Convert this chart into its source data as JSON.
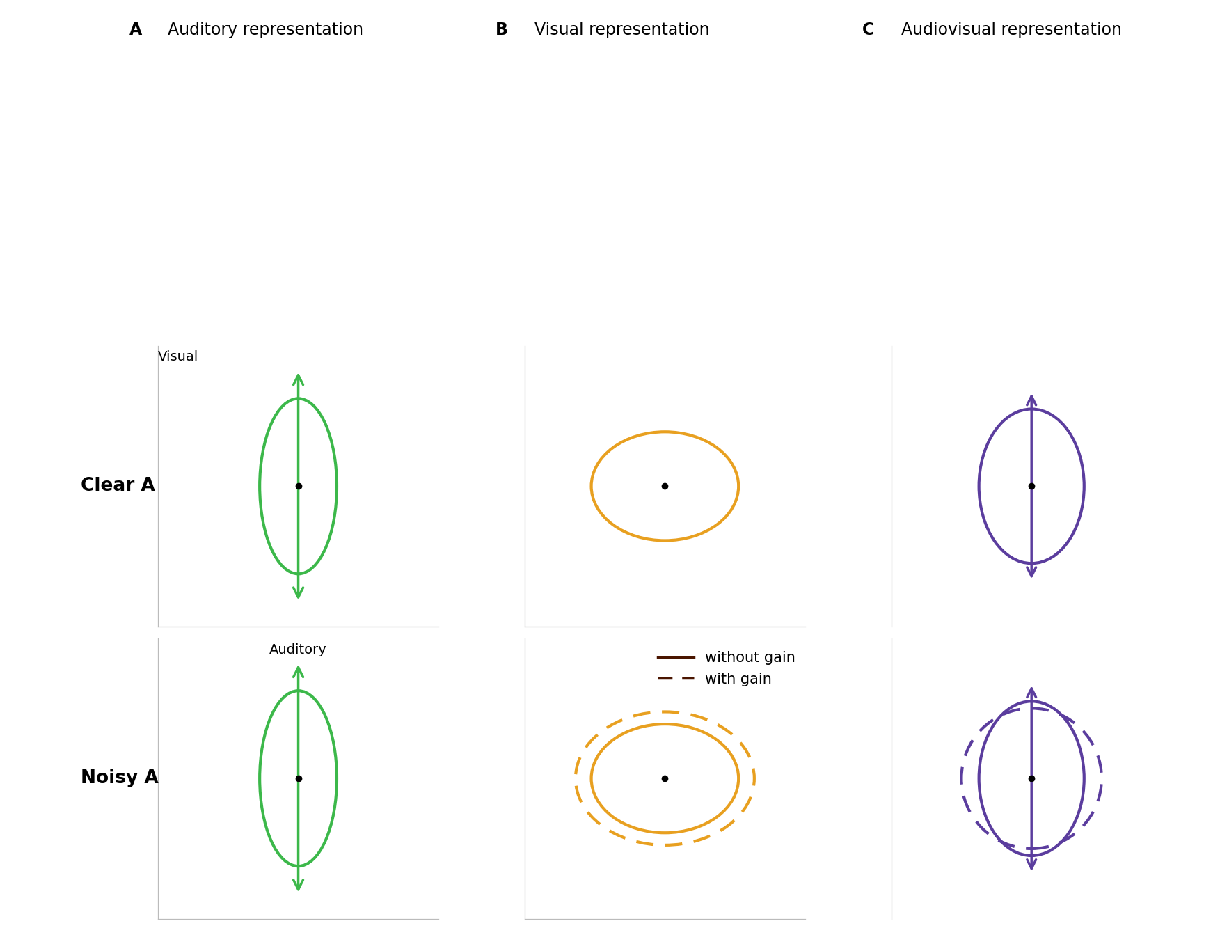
{
  "panel_titles": [
    "A  Auditory representation",
    "B  Visual representation",
    "C  Audiovisual representation"
  ],
  "row_labels": [
    "Clear A",
    "Noisy A"
  ],
  "axis_label_visual": "Visual",
  "axis_label_auditory": "Auditory",
  "green_color": "#3cb84a",
  "yellow_color": "#e8a020",
  "purple_color": "#5b3d9e",
  "dark_brown": "#4a1500",
  "axis_line_color": "#bbbbbb",
  "legend_solid_label": "without gain",
  "legend_dashed_label": "with gain",
  "background_color": "#ffffff",
  "title_fontsize": 17,
  "row_label_fontsize": 19,
  "axis_label_fontsize": 14,
  "legend_fontsize": 15
}
